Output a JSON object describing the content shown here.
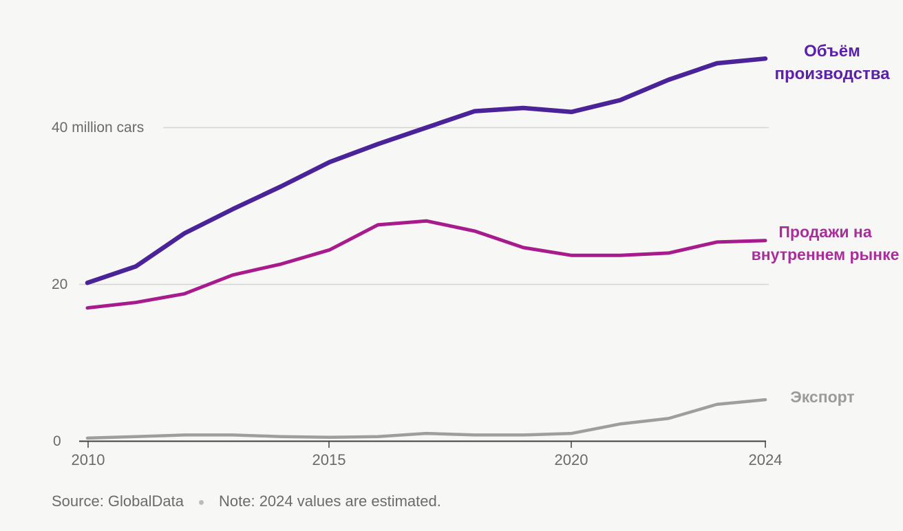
{
  "chart_data": {
    "type": "line",
    "unit": "million cars",
    "x": [
      2010,
      2011,
      2012,
      2013,
      2014,
      2015,
      2016,
      2017,
      2018,
      2019,
      2020,
      2021,
      2022,
      2023,
      2024
    ],
    "x_ticks": [
      "2010",
      "2015",
      "2020",
      "2024"
    ],
    "ylim": [
      0,
      50
    ],
    "grid": "horizontal",
    "legend_position": "right-of-line-ends",
    "y_axis_ticks": [
      {
        "value": 0,
        "label": "0"
      },
      {
        "value": 20,
        "label": "20"
      },
      {
        "value": 40,
        "label": "40 million cars"
      }
    ],
    "series": [
      {
        "id": "production",
        "label": "Объём производства",
        "label_lines": [
          "Объём",
          "производства"
        ],
        "color": "#4b2398",
        "label_color": "#5b21a8",
        "stroke_width": 6.5,
        "values": [
          20.2,
          22.3,
          26.5,
          29.6,
          32.5,
          35.6,
          37.9,
          40.0,
          42.1,
          42.5,
          42.0,
          43.5,
          46.1,
          48.2,
          48.8
        ]
      },
      {
        "id": "domestic",
        "label": "Продажи на внутреннем рынке",
        "label_lines": [
          "Продажи на",
          "внутреннем рынке"
        ],
        "color": "#a81b8c",
        "label_color": "#aa2d9c",
        "stroke_width": 5,
        "values": [
          17.0,
          17.7,
          18.8,
          21.2,
          22.6,
          24.4,
          27.6,
          28.1,
          26.8,
          24.7,
          23.7,
          23.7,
          24.0,
          25.4,
          25.6
        ]
      },
      {
        "id": "exports",
        "label": "Экспорт",
        "label_lines": [
          "Экспорт"
        ],
        "color": "#9e9e9e",
        "label_color": "#9b9b9b",
        "stroke_width": 4.5,
        "values": [
          0.4,
          0.6,
          0.8,
          0.8,
          0.6,
          0.5,
          0.6,
          1.0,
          0.8,
          0.8,
          1.0,
          2.2,
          2.9,
          4.7,
          5.3
        ]
      }
    ]
  },
  "footer": {
    "source": "Source: GlobalData",
    "separator": "•",
    "note": "Note: 2024 values are estimated."
  }
}
